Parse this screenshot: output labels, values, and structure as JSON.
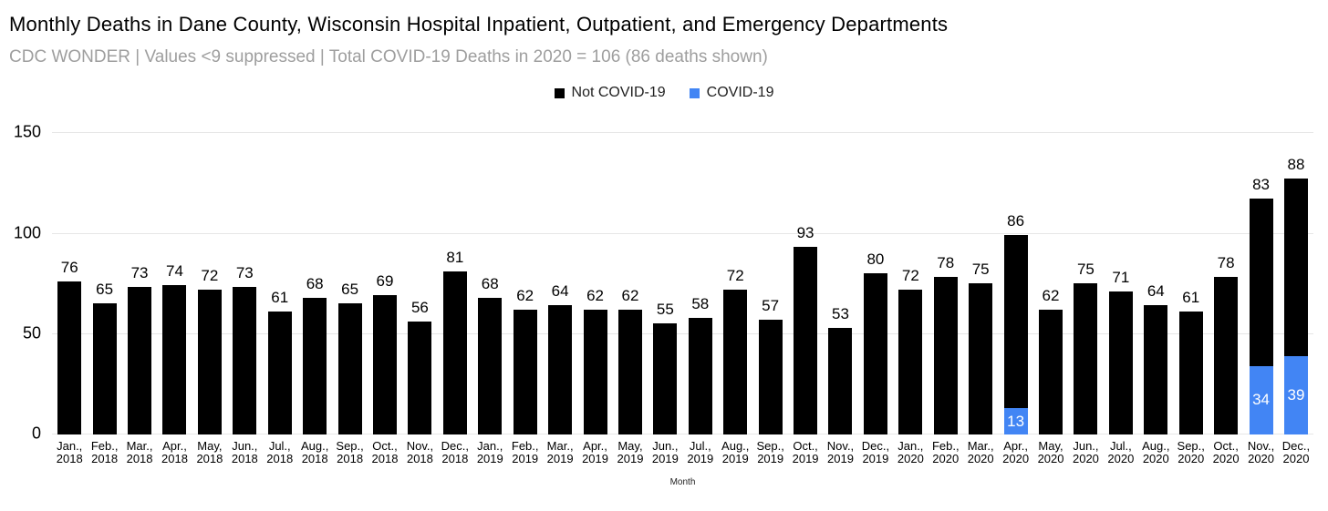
{
  "header": {
    "title": "Monthly Deaths in Dane County, Wisconsin Hospital Inpatient, Outpatient, and Emergency Departments",
    "subtitle": "CDC WONDER | Values <9 suppressed | Total COVID-19 Deaths in 2020 = 106 (86 deaths shown)"
  },
  "legend": [
    {
      "label": "Not COVID-19",
      "color": "#000000"
    },
    {
      "label": "COVID-19",
      "color": "#4285f4"
    }
  ],
  "chart_data": {
    "type": "bar",
    "stacked": true,
    "title": "Monthly Deaths in Dane County, Wisconsin Hospital Inpatient, Outpatient, and Emergency Departments",
    "subtitle": "CDC WONDER | Values <9 suppressed | Total COVID-19 Deaths in 2020 = 106 (86 deaths shown)",
    "xlabel": "Month",
    "ylabel": "",
    "ylim": [
      0,
      150
    ],
    "y_ticks": [
      0,
      50,
      100,
      150
    ],
    "grid": true,
    "legend_position": "top-center",
    "categories": [
      "Jan., 2018",
      "Feb., 2018",
      "Mar., 2018",
      "Apr., 2018",
      "May, 2018",
      "Jun., 2018",
      "Jul., 2018",
      "Aug., 2018",
      "Sep., 2018",
      "Oct., 2018",
      "Nov., 2018",
      "Dec., 2018",
      "Jan., 2019",
      "Feb., 2019",
      "Mar., 2019",
      "Apr., 2019",
      "May, 2019",
      "Jun., 2019",
      "Jul., 2019",
      "Aug., 2019",
      "Sep., 2019",
      "Oct., 2019",
      "Nov., 2019",
      "Dec., 2019",
      "Jan., 2020",
      "Feb., 2020",
      "Mar., 2020",
      "Apr., 2020",
      "May, 2020",
      "Jun., 2020",
      "Jul., 2020",
      "Aug., 2020",
      "Sep., 2020",
      "Oct., 2020",
      "Nov., 2020",
      "Dec., 2020"
    ],
    "series": [
      {
        "name": "Not COVID-19",
        "color": "#000000",
        "values": [
          76,
          65,
          73,
          74,
          72,
          73,
          61,
          68,
          65,
          69,
          56,
          81,
          68,
          62,
          64,
          62,
          62,
          55,
          58,
          72,
          57,
          93,
          53,
          80,
          72,
          78,
          75,
          86,
          62,
          75,
          71,
          64,
          61,
          78,
          83,
          88
        ]
      },
      {
        "name": "COVID-19",
        "color": "#4285f4",
        "values": [
          0,
          0,
          0,
          0,
          0,
          0,
          0,
          0,
          0,
          0,
          0,
          0,
          0,
          0,
          0,
          0,
          0,
          0,
          0,
          0,
          0,
          0,
          0,
          0,
          0,
          0,
          0,
          13,
          0,
          0,
          0,
          0,
          0,
          0,
          34,
          39
        ]
      }
    ],
    "bar_label_note": "Not COVID-19 value labeled above each bar; COVID-19 value labeled in white inside blue segment"
  }
}
